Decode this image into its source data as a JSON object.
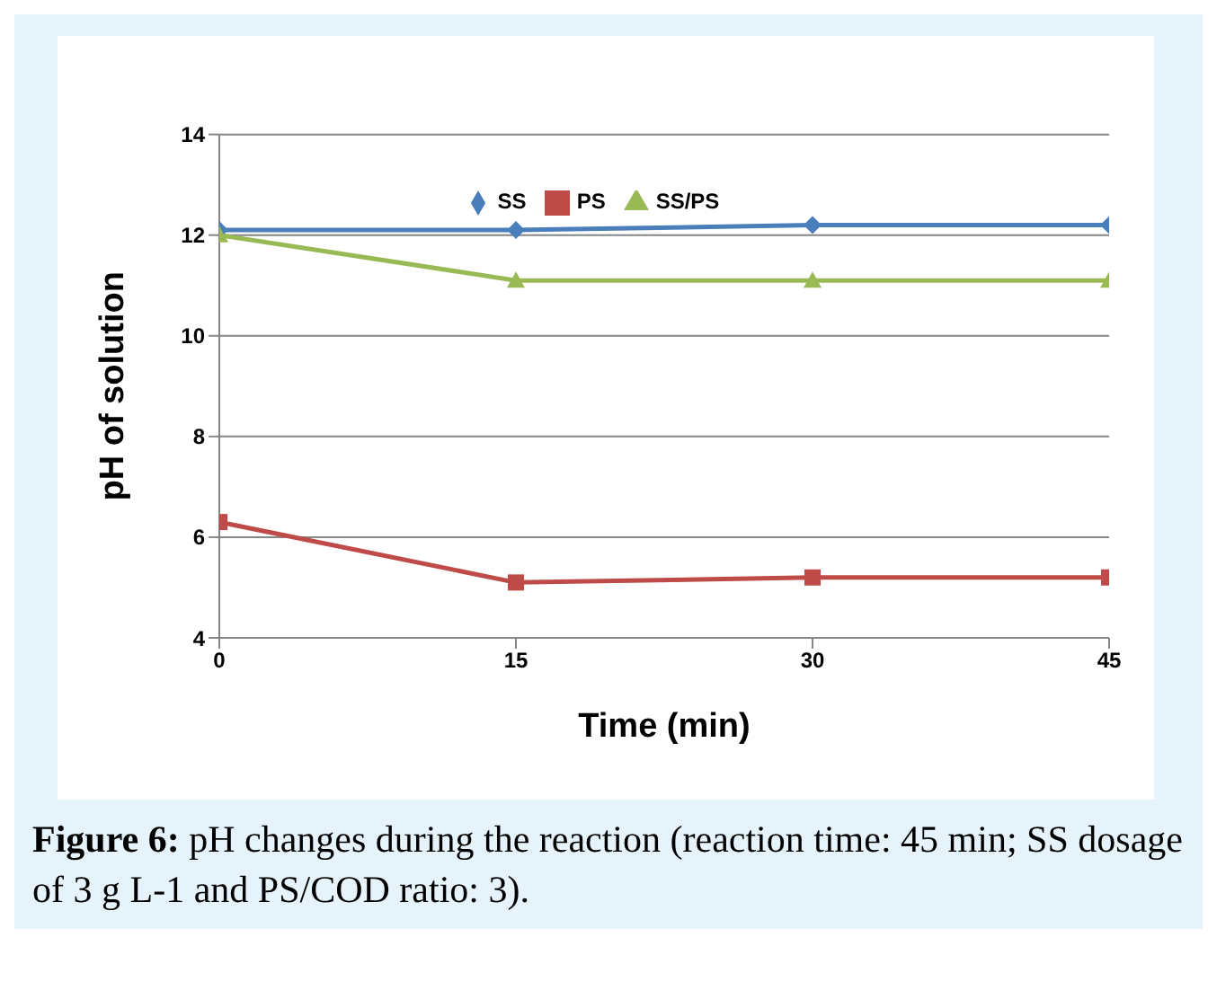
{
  "chart_data": {
    "type": "line",
    "xlabel": "Time (min)",
    "ylabel": "pH of solution",
    "x": [
      0,
      15,
      30,
      45
    ],
    "xlim": [
      0,
      45
    ],
    "xticks": [
      0,
      15,
      30,
      45
    ],
    "ylim": [
      4,
      14
    ],
    "yticks": [
      4,
      6,
      8,
      10,
      12,
      14
    ],
    "grid": "y",
    "legend": "top",
    "series": [
      {
        "name": "SS",
        "color": "#4a7ebb",
        "marker": "diamond",
        "values": [
          12.1,
          12.1,
          12.2,
          12.2
        ]
      },
      {
        "name": "PS",
        "color": "#be4b48",
        "marker": "square",
        "values": [
          6.3,
          5.1,
          5.2,
          5.2
        ]
      },
      {
        "name": "SS/PS",
        "color": "#98b954",
        "marker": "triangle",
        "values": [
          12.0,
          11.1,
          11.1,
          11.1
        ]
      }
    ],
    "annotations": [
      "Figure 6: pH changes during the reaction (reaction time: 45 min; SS dosage of 3 g L-1 and PS/COD ratio: 3)."
    ]
  }
}
